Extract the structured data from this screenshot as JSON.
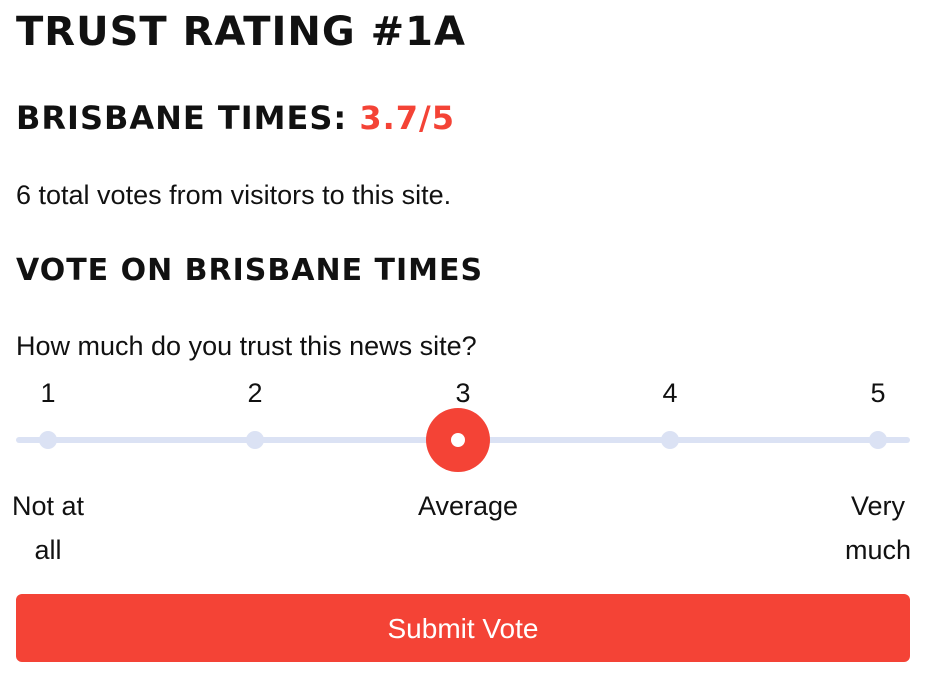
{
  "heading": "TRUST RATING #1A",
  "site_rating": {
    "site_label": "BRISBANE TIMES:",
    "score": "3.7/5",
    "score_color": "#f44336"
  },
  "votes_text": "6 total votes from visitors to this site.",
  "vote_section": {
    "title": "VOTE ON BRISBANE TIMES",
    "question": "How much do you trust this news site?",
    "ticks": [
      "1",
      "2",
      "3",
      "4",
      "5"
    ],
    "selected_value": 3,
    "labels": {
      "low_line1": "Not at",
      "low_line2": "all",
      "mid": "Average",
      "high_line1": "Very",
      "high_line2": "much"
    },
    "slider_color": "#f44336",
    "track_color": "#dbe2f4"
  },
  "submit_label": "Submit Vote"
}
